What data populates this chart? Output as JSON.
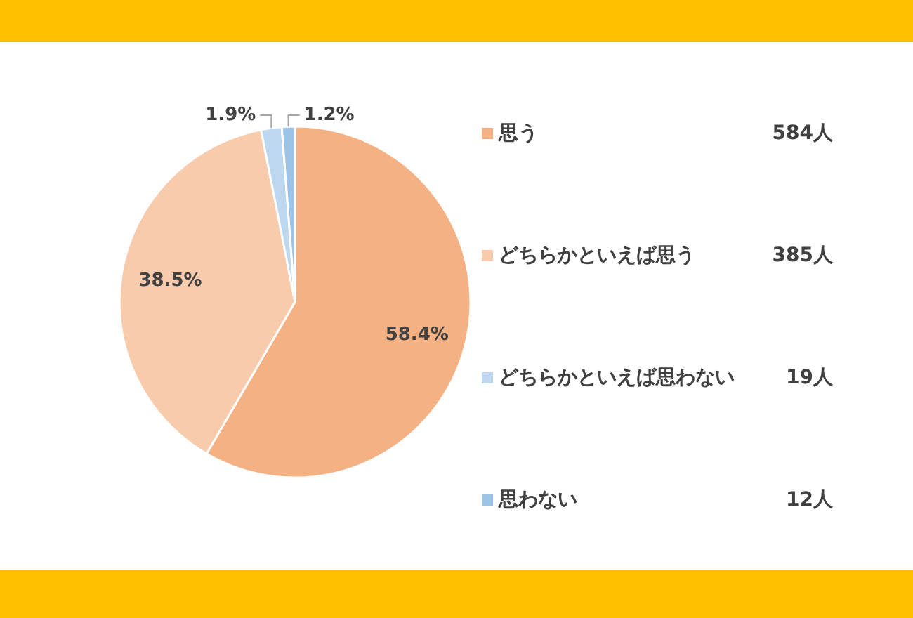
{
  "chart_data": {
    "type": "pie",
    "categories": [
      "思う",
      "どちらかといえば思う",
      "どちらかといえば思わない",
      "思わない"
    ],
    "values": [
      58.4,
      38.5,
      1.9,
      1.2
    ],
    "value_labels": [
      "58.4%",
      "38.5%",
      "1.9%",
      "1.2%"
    ],
    "colors": [
      "#f4b183",
      "#f8cbad",
      "#bdd7ee",
      "#9dc3e6"
    ],
    "annotations": [
      "584人",
      "385人",
      "19人",
      "12人"
    ],
    "legend": "right"
  }
}
